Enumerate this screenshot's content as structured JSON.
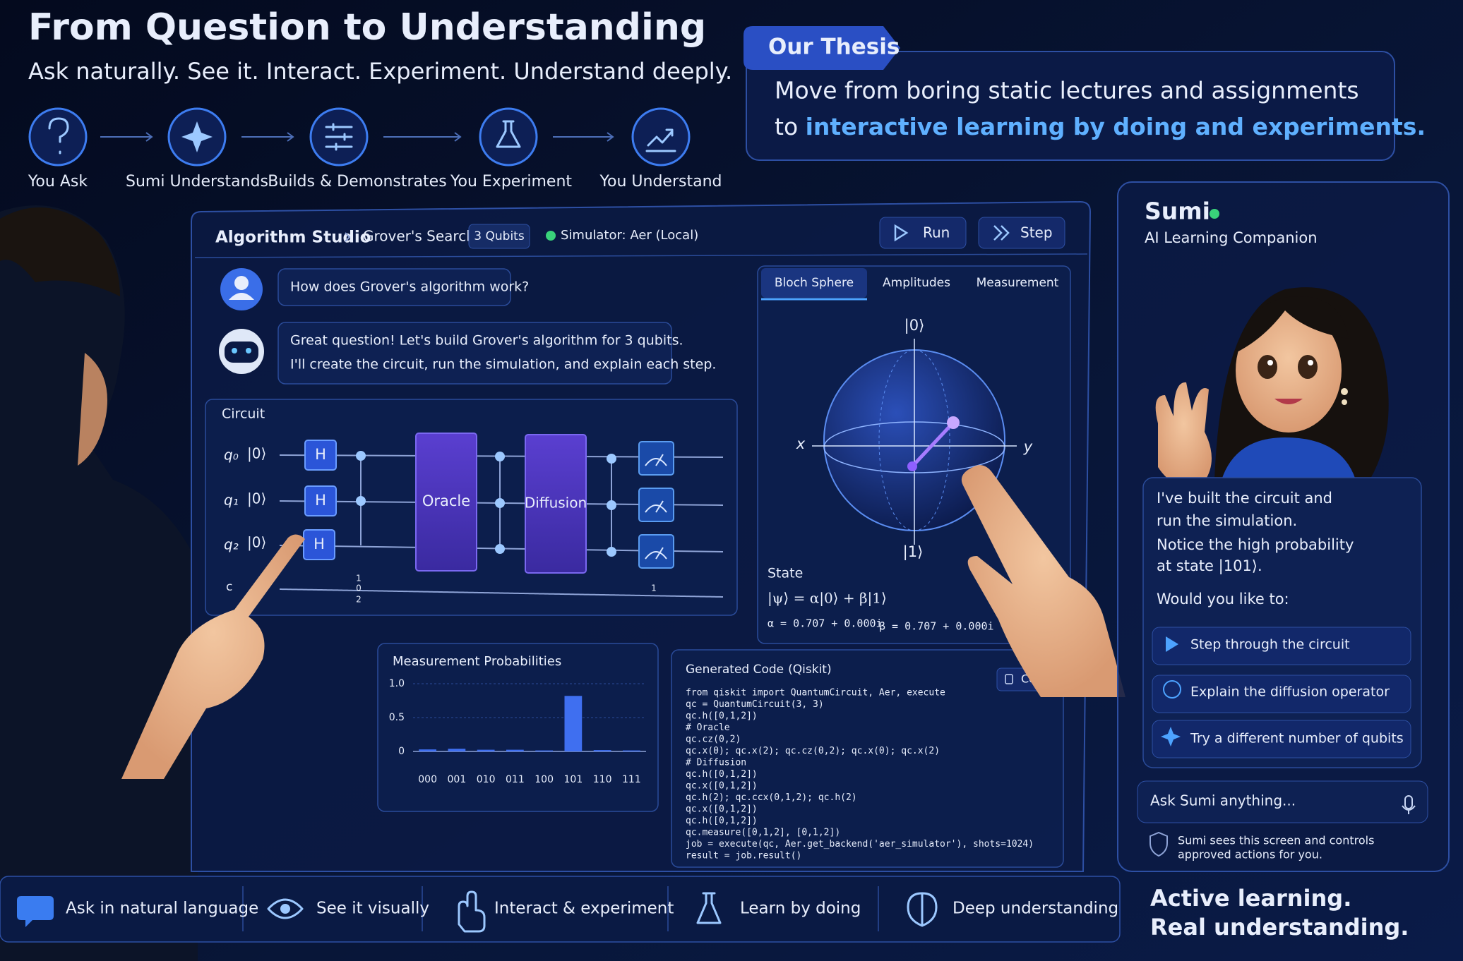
{
  "header": {
    "title": "From Question to Understanding",
    "subtitle": "Ask naturally. See it. Interact. Experiment. Understand deeply."
  },
  "flow": {
    "steps": [
      "You Ask",
      "Sumi Understands",
      "Builds & Demonstrates",
      "You Experiment",
      "You Understand"
    ]
  },
  "thesis": {
    "tag": "Our Thesis",
    "line_1": "Move from boring static lectures and assignments",
    "line_2_prefix": "to ",
    "highlight": "interactive learning by doing and experiments."
  },
  "studio": {
    "title": "Algorithm Studio",
    "crumb": "Grover's Search",
    "qubits": "3 Qubits",
    "simulator": "Simulator: Aer (Local)",
    "run": "Run",
    "step": "Step"
  },
  "chat": {
    "user": "How does Grover's algorithm work?",
    "bot": [
      "Great question! Let's build Grover's algorithm for 3 qubits.",
      "I'll create the circuit, run the simulation, and explain each step."
    ]
  },
  "circuit": {
    "title": "Circuit",
    "qubits": [
      {
        "name": "q₀",
        "state": "|0⟩"
      },
      {
        "name": "q₁",
        "state": "|0⟩"
      },
      {
        "name": "q₂",
        "state": "|0⟩"
      }
    ],
    "gate": "H",
    "oracle": "Oracle",
    "diffusion": "Diffusion",
    "classical": "c",
    "c_marks": [
      "1",
      "0",
      "2"
    ],
    "c_mark_right": "1"
  },
  "bloch": {
    "tabs": [
      "Bloch Sphere",
      "Amplitudes",
      "Measurement"
    ],
    "top": "|0⟩",
    "bottom": "|1⟩",
    "x": "x",
    "y": "y",
    "state_title": "State",
    "equation": "|ψ⟩ = α|0⟩ + β|1⟩",
    "alpha": "α = 0.707 + 0.000i",
    "beta": "β = 0.707 + 0.000i"
  },
  "chart_data": {
    "type": "bar",
    "title": "Measurement Probabilities",
    "categories": [
      "000",
      "001",
      "010",
      "011",
      "100",
      "101",
      "110",
      "111"
    ],
    "values": [
      0.03,
      0.04,
      0.025,
      0.025,
      0.015,
      0.82,
      0.02,
      0.015
    ],
    "color": "#3f6ff0",
    "ylim": [
      0,
      1
    ],
    "yticks": [
      0,
      {
        "value": 0.5,
        "label": "0.5"
      },
      {
        "value": 1,
        "label": "1.0"
      }
    ],
    "grid": true
  },
  "code": {
    "title": "Generated Code",
    "subtitle": "(Qiskit)",
    "copy": "Copy",
    "lines": [
      "from qiskit import QuantumCircuit, Aer, execute",
      "qc = QuantumCircuit(3, 3)",
      "qc.h([0,1,2])",
      "# Oracle",
      "qc.cz(0,2)",
      "qc.x(0); qc.x(2); qc.cz(0,2); qc.x(0); qc.x(2)",
      "# Diffusion",
      "qc.h([0,1,2])",
      "qc.x([0,1,2])",
      "qc.h(2); qc.ccx(0,1,2); qc.h(2)",
      "qc.x([0,1,2])",
      "qc.h([0,1,2])",
      "qc.measure([0,1,2], [0,1,2])",
      "job = execute(qc, Aer.get_backend('aer_simulator'), shots=1024)",
      "result = job.result()"
    ]
  },
  "sumi": {
    "name": "Sumi",
    "role": "AI Learning Companion",
    "message": [
      "I've built the circuit and",
      "run the simulation.",
      "Notice the high probability",
      "at state |101⟩."
    ],
    "prompt": "Would you like to:",
    "options": [
      "Step through the circuit",
      "Explain the diffusion operator",
      "Try a different number of qubits"
    ],
    "input": "Ask Sumi anything...",
    "note": [
      "Sumi sees this screen and controls",
      "approved actions for you."
    ]
  },
  "features": [
    "Ask in natural language",
    "See it visually",
    "Interact & experiment",
    "Learn by doing",
    "Deep understanding"
  ],
  "tagline": [
    "Active learning.",
    "Real understanding."
  ]
}
